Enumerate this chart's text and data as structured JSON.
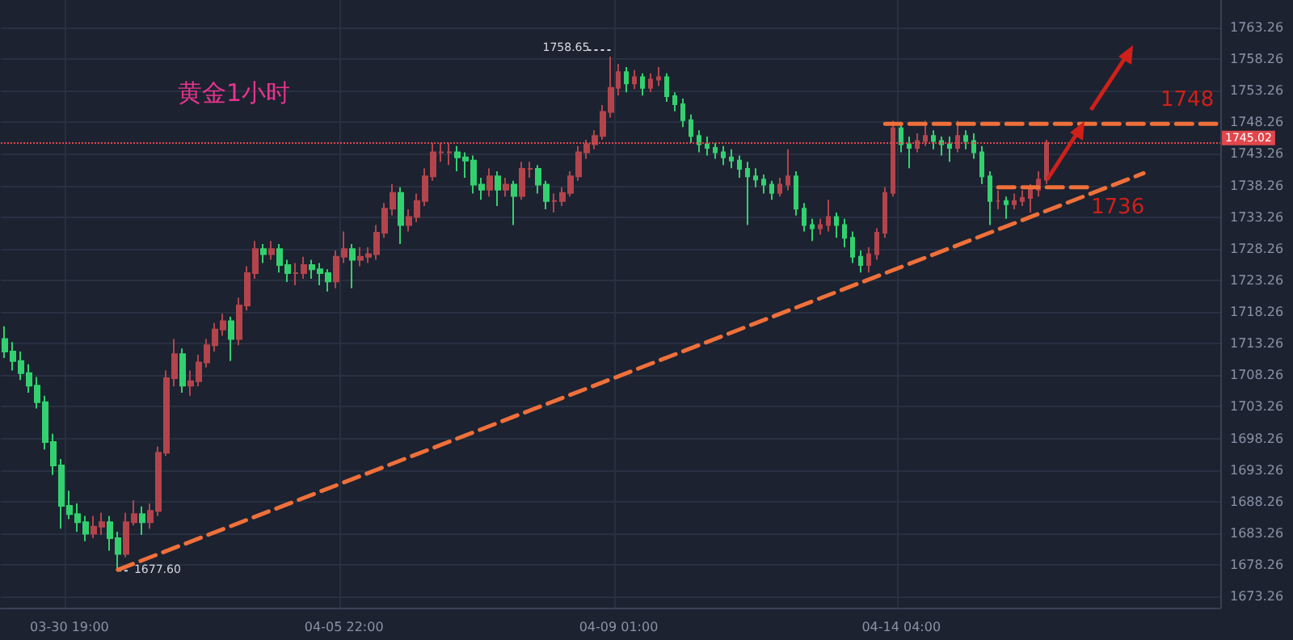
{
  "chart_data": {
    "type": "candlestick",
    "annotations": [
      "黄金1小时",
      "1758.65",
      "1677.60",
      {
        "text": "1748",
        "y": 1748
      },
      "1736"
    ],
    "categories": [
      null,
      null,
      null,
      null,
      null,
      null,
      null,
      null,
      "03-30 19:00",
      null,
      null,
      null,
      null,
      null,
      null,
      null,
      null,
      null,
      null,
      null,
      null,
      null,
      null,
      null,
      null,
      null,
      null,
      null,
      null,
      null,
      null,
      null,
      null,
      null,
      null,
      null,
      null,
      null,
      null,
      null,
      null,
      null,
      "04-05 22:00",
      null,
      null,
      null,
      null,
      null,
      null,
      null,
      null,
      null,
      null,
      null,
      null,
      null,
      null,
      null,
      null,
      null,
      null,
      null,
      null,
      null,
      null,
      null,
      null,
      null,
      null,
      null,
      null,
      null,
      null,
      null,
      null,
      null,
      "04-09 01:00",
      null,
      null,
      null,
      null,
      null,
      null,
      null,
      null,
      null,
      null,
      null,
      null,
      null,
      null,
      null,
      null,
      null,
      null,
      null,
      null,
      null,
      null,
      null,
      null,
      null,
      null,
      null,
      null,
      null,
      null,
      null,
      null,
      null,
      null,
      "04-14 04:00",
      null,
      null,
      null,
      null,
      null,
      null,
      null,
      null,
      null,
      null,
      null,
      null,
      null,
      null,
      null,
      null,
      null,
      null,
      null,
      null,
      null,
      null,
      null,
      null,
      null,
      null,
      null,
      null,
      null,
      null,
      null,
      null,
      null,
      null,
      null,
      null,
      null,
      null,
      null
    ],
    "ohlc": [
      [
        1714,
        1716,
        1711,
        1712
      ],
      [
        1712,
        1713.5,
        1709,
        1710.5
      ],
      [
        1710.5,
        1712,
        1707.5,
        1708.6
      ],
      [
        1708.6,
        1710,
        1705.5,
        1706.6
      ],
      [
        1706.6,
        1708,
        1703,
        1704
      ],
      [
        1704,
        1705,
        1696.5,
        1697.7
      ],
      [
        1697.7,
        1699,
        1692.5,
        1694
      ],
      [
        1694,
        1695,
        1684,
        1687.6
      ],
      [
        1687.6,
        1690,
        1685.5,
        1686.3
      ],
      [
        1686.3,
        1688,
        1683.5,
        1685
      ],
      [
        1685,
        1686,
        1682,
        1683.2
      ],
      [
        1683.2,
        1686,
        1682.5,
        1684.3
      ],
      [
        1684.3,
        1686.5,
        1683,
        1685
      ],
      [
        1685,
        1686,
        1680.5,
        1682.5
      ],
      [
        1682.5,
        1683.5,
        1677.6,
        1680
      ],
      [
        1680,
        1686.5,
        1679.5,
        1685
      ],
      [
        1685,
        1688.5,
        1684.5,
        1686.3
      ],
      [
        1686.3,
        1687.5,
        1683,
        1685
      ],
      [
        1685,
        1688,
        1684,
        1686.8
      ],
      [
        1686.8,
        1697,
        1686,
        1696
      ],
      [
        1696,
        1709,
        1695.5,
        1707.8
      ],
      [
        1707.8,
        1714,
        1706.5,
        1711.6
      ],
      [
        1711.6,
        1712.5,
        1705.5,
        1706.6
      ],
      [
        1706.6,
        1709,
        1705,
        1707.3
      ],
      [
        1707.3,
        1711.5,
        1706.5,
        1710.3
      ],
      [
        1710.3,
        1714,
        1709.5,
        1713
      ],
      [
        1713,
        1716.5,
        1712,
        1715.5
      ],
      [
        1715.5,
        1718,
        1714.5,
        1716.8
      ],
      [
        1716.8,
        1717.5,
        1710.5,
        1714
      ],
      [
        1714,
        1720.5,
        1713,
        1719.3
      ],
      [
        1719.3,
        1725.5,
        1718.5,
        1724.4
      ],
      [
        1724.4,
        1729.5,
        1723.5,
        1728.2
      ],
      [
        1728.2,
        1729,
        1726,
        1727.4
      ],
      [
        1727.4,
        1729.5,
        1726.5,
        1728.2
      ],
      [
        1728.2,
        1729,
        1724.5,
        1725.7
      ],
      [
        1725.7,
        1726.5,
        1723,
        1724.4
      ],
      [
        1724.4,
        1726,
        1722.5,
        1724.4
      ],
      [
        1724.4,
        1727,
        1723.5,
        1725.7
      ],
      [
        1725.7,
        1726.5,
        1723.5,
        1725
      ],
      [
        1725,
        1726,
        1722.5,
        1724.4
      ],
      [
        1724.4,
        1725,
        1721.5,
        1723.1
      ],
      [
        1723.1,
        1728,
        1722,
        1727
      ],
      [
        1727,
        1731,
        1726,
        1728.2
      ],
      [
        1728.2,
        1729,
        1722,
        1726.5
      ],
      [
        1726.5,
        1728.5,
        1725.5,
        1727
      ],
      [
        1727,
        1728.5,
        1726,
        1727.4
      ],
      [
        1727.4,
        1732,
        1726.5,
        1730.8
      ],
      [
        1730.8,
        1735.5,
        1730,
        1734.6
      ],
      [
        1734.6,
        1738.5,
        1733.5,
        1737.1
      ],
      [
        1737.1,
        1738,
        1729,
        1732
      ],
      [
        1732,
        1734.5,
        1731,
        1733.3
      ],
      [
        1733.3,
        1737,
        1732.5,
        1735.8
      ],
      [
        1735.8,
        1741,
        1735,
        1739.7
      ],
      [
        1739.7,
        1745,
        1739,
        1743.5
      ],
      [
        1743.5,
        1745,
        1742,
        1743.5
      ],
      [
        1743.5,
        1745,
        1741.5,
        1743.5
      ],
      [
        1743.5,
        1744.5,
        1740.5,
        1742.7
      ],
      [
        1742.7,
        1743.5,
        1739.5,
        1742.2
      ],
      [
        1742.2,
        1743,
        1737,
        1738.4
      ],
      [
        1738.4,
        1739.5,
        1736,
        1737.6
      ],
      [
        1737.6,
        1741,
        1736.5,
        1739.7
      ],
      [
        1739.7,
        1740.5,
        1735,
        1737.6
      ],
      [
        1737.6,
        1739.5,
        1736.5,
        1738.4
      ],
      [
        1738.4,
        1739,
        1732,
        1736.6
      ],
      [
        1736.6,
        1742,
        1736,
        1740.9
      ],
      [
        1740.9,
        1742,
        1739.5,
        1740.9
      ],
      [
        1740.9,
        1741.5,
        1737,
        1738.4
      ],
      [
        1738.4,
        1739,
        1734.5,
        1735.8
      ],
      [
        1735.8,
        1737,
        1734,
        1735.8
      ],
      [
        1735.8,
        1738,
        1735,
        1737.1
      ],
      [
        1737.1,
        1740.5,
        1736.5,
        1739.7
      ],
      [
        1739.7,
        1744.5,
        1739,
        1743.5
      ],
      [
        1743.5,
        1745.5,
        1742.5,
        1744.8
      ],
      [
        1744.8,
        1747,
        1744,
        1746.1
      ],
      [
        1746.1,
        1751,
        1745.5,
        1749.9
      ],
      [
        1749.9,
        1758.65,
        1749,
        1753.7
      ],
      [
        1753.7,
        1757.5,
        1752.5,
        1756.2
      ],
      [
        1756.2,
        1757,
        1753,
        1754.4
      ],
      [
        1754.4,
        1756.5,
        1753.5,
        1755.4
      ],
      [
        1755.4,
        1756,
        1752.5,
        1753.7
      ],
      [
        1753.7,
        1756,
        1753,
        1755
      ],
      [
        1755,
        1757,
        1754,
        1755.4
      ],
      [
        1755.4,
        1756,
        1751.5,
        1752.4
      ],
      [
        1752.4,
        1753,
        1750,
        1751.1
      ],
      [
        1751.1,
        1752,
        1747.5,
        1748.6
      ],
      [
        1748.6,
        1749.5,
        1745,
        1746.1
      ],
      [
        1746.1,
        1747,
        1743.5,
        1744.8
      ],
      [
        1744.8,
        1746,
        1743,
        1744.2
      ],
      [
        1744.2,
        1745,
        1742.5,
        1743.5
      ],
      [
        1743.5,
        1744.5,
        1741.5,
        1742.7
      ],
      [
        1742.7,
        1744,
        1741,
        1742.2
      ],
      [
        1742.2,
        1743,
        1739.5,
        1740.9
      ],
      [
        1740.9,
        1742,
        1732,
        1739.7
      ],
      [
        1739.7,
        1741,
        1738,
        1739.2
      ],
      [
        1739.2,
        1740,
        1737,
        1738.4
      ],
      [
        1738.4,
        1739,
        1736,
        1737.1
      ],
      [
        1737.1,
        1739.5,
        1736.5,
        1738.4
      ],
      [
        1738.4,
        1744,
        1737.5,
        1739.7
      ],
      [
        1739.7,
        1740.5,
        1733.5,
        1734.6
      ],
      [
        1734.6,
        1735.5,
        1731,
        1732
      ],
      [
        1732,
        1733,
        1729.5,
        1731.5
      ],
      [
        1731.5,
        1733,
        1730.5,
        1732
      ],
      [
        1732,
        1736,
        1731,
        1733.3
      ],
      [
        1733.3,
        1734,
        1730,
        1732
      ],
      [
        1732,
        1733,
        1728.5,
        1730
      ],
      [
        1730,
        1731,
        1726,
        1727
      ],
      [
        1727,
        1728,
        1724.5,
        1725.7
      ],
      [
        1725.7,
        1728.5,
        1724.5,
        1727.4
      ],
      [
        1727.4,
        1731.5,
        1726.5,
        1730.8
      ],
      [
        1730.8,
        1738,
        1730,
        1737.1
      ],
      [
        1737.1,
        1748.5,
        1736.5,
        1747.3
      ],
      [
        1747.3,
        1748,
        1743.5,
        1744.8
      ],
      [
        1744.8,
        1746,
        1741,
        1744.2
      ],
      [
        1744.2,
        1746.5,
        1743.5,
        1745.3
      ],
      [
        1745.3,
        1748.5,
        1744.5,
        1746.1
      ],
      [
        1746.1,
        1747,
        1744,
        1745.3
      ],
      [
        1745.3,
        1746,
        1743,
        1744.8
      ],
      [
        1744.8,
        1746,
        1742,
        1744.2
      ],
      [
        1744.2,
        1748.5,
        1743.5,
        1746.1
      ],
      [
        1746.1,
        1747,
        1744,
        1745.3
      ],
      [
        1745.3,
        1746.5,
        1742.5,
        1743.5
      ],
      [
        1743.5,
        1744.5,
        1738.5,
        1739.7
      ],
      [
        1739.7,
        1740.5,
        1732,
        1735.8
      ],
      [
        1735.8,
        1737.5,
        1734.5,
        1735.8
      ],
      [
        1735.8,
        1736.5,
        1733,
        1735.3
      ],
      [
        1735.3,
        1737,
        1734.5,
        1735.8
      ],
      [
        1735.8,
        1737.5,
        1735,
        1736.3
      ],
      [
        1736.3,
        1738.5,
        1734,
        1737.6
      ],
      [
        1737.6,
        1740.5,
        1736.5,
        1739.2
      ],
      [
        1739.2,
        1745.5,
        1738.5,
        1745.02
      ],
      null,
      null,
      null,
      null,
      null,
      null,
      null,
      null,
      null,
      null,
      null,
      null,
      null,
      null,
      null,
      null,
      null,
      null,
      null,
      null,
      null
    ],
    "series": [
      {
        "type": "line",
        "color": "#f0703a",
        "line_style": "dashed",
        "values": [
          null,
          null,
          null,
          null,
          null,
          null,
          null,
          null,
          null,
          null,
          null,
          null,
          null,
          null,
          1677.5,
          null,
          null,
          null,
          null,
          null,
          null,
          null,
          null,
          null,
          null,
          null,
          null,
          null,
          null,
          null,
          null,
          null,
          null,
          null,
          null,
          null,
          null,
          null,
          null,
          null,
          null,
          null,
          null,
          null,
          null,
          null,
          null,
          null,
          null,
          null,
          null,
          null,
          null,
          null,
          null,
          null,
          null,
          null,
          null,
          null,
          null,
          null,
          null,
          null,
          null,
          null,
          null,
          null,
          null,
          null,
          null,
          null,
          null,
          null,
          null,
          null,
          null,
          null,
          null,
          null,
          null,
          null,
          null,
          null,
          null,
          null,
          null,
          null,
          null,
          null,
          null,
          null,
          null,
          null,
          null,
          null,
          null,
          null,
          null,
          null,
          null,
          null,
          null,
          null,
          null,
          null,
          null,
          null,
          null,
          null,
          null,
          null,
          null,
          null,
          null,
          null,
          null,
          null,
          null,
          null,
          null,
          null,
          null,
          null,
          null,
          null,
          null,
          null,
          null,
          null,
          null,
          null,
          null,
          null,
          null,
          null,
          null,
          null,
          null,
          null,
          null,
          1740.2,
          null,
          null,
          null,
          null,
          null,
          null,
          null,
          null,
          null
        ]
      },
      {
        "type": "line",
        "color": "#f0703a",
        "line_style": "dashed",
        "values": [
          null,
          null,
          null,
          null,
          null,
          null,
          null,
          null,
          null,
          null,
          null,
          null,
          null,
          null,
          null,
          null,
          null,
          null,
          null,
          null,
          null,
          null,
          null,
          null,
          null,
          null,
          null,
          null,
          null,
          null,
          null,
          null,
          null,
          null,
          null,
          null,
          null,
          null,
          null,
          null,
          null,
          null,
          null,
          null,
          null,
          null,
          null,
          null,
          null,
          null,
          null,
          null,
          null,
          null,
          null,
          null,
          null,
          null,
          null,
          null,
          null,
          null,
          null,
          null,
          null,
          null,
          null,
          null,
          null,
          null,
          null,
          null,
          null,
          null,
          null,
          null,
          null,
          null,
          null,
          null,
          null,
          null,
          null,
          null,
          null,
          null,
          null,
          null,
          null,
          null,
          null,
          null,
          null,
          null,
          null,
          null,
          null,
          null,
          null,
          null,
          null,
          null,
          null,
          null,
          null,
          null,
          null,
          null,
          null,
          1748,
          null,
          null,
          null,
          null,
          null,
          null,
          null,
          null,
          null,
          null,
          null,
          null,
          null,
          null,
          null,
          null,
          null,
          null,
          null,
          null,
          null,
          null,
          null,
          null,
          null,
          null,
          null,
          null,
          null,
          null,
          null,
          null,
          null,
          null,
          null,
          null,
          null,
          null,
          null,
          null,
          1748
        ]
      },
      {
        "type": "line",
        "color": "#f0703a",
        "line_style": "dashed",
        "values": [
          null,
          null,
          null,
          null,
          null,
          null,
          null,
          null,
          null,
          null,
          null,
          null,
          null,
          null,
          null,
          null,
          null,
          null,
          null,
          null,
          null,
          null,
          null,
          null,
          null,
          null,
          null,
          null,
          null,
          null,
          null,
          null,
          null,
          null,
          null,
          null,
          null,
          null,
          null,
          null,
          null,
          null,
          null,
          null,
          null,
          null,
          null,
          null,
          null,
          null,
          null,
          null,
          null,
          null,
          null,
          null,
          null,
          null,
          null,
          null,
          null,
          null,
          null,
          null,
          null,
          null,
          null,
          null,
          null,
          null,
          null,
          null,
          null,
          null,
          null,
          null,
          null,
          null,
          null,
          null,
          null,
          null,
          null,
          null,
          null,
          null,
          null,
          null,
          null,
          null,
          null,
          null,
          null,
          null,
          null,
          null,
          null,
          null,
          null,
          null,
          null,
          null,
          null,
          null,
          null,
          null,
          null,
          null,
          null,
          null,
          null,
          null,
          null,
          null,
          null,
          null,
          null,
          null,
          null,
          null,
          null,
          null,
          null,
          1738,
          null,
          null,
          null,
          null,
          null,
          null,
          null,
          null,
          null,
          null,
          null,
          1738,
          null,
          null,
          null,
          null,
          null,
          null,
          null,
          null,
          null,
          null,
          null,
          null,
          null,
          null,
          null
        ]
      }
    ],
    "ref_lines": [
      {
        "axis": "y",
        "value": 1745.02,
        "label": "1745.02",
        "color": "#e0474c",
        "line_style": "dotted"
      }
    ],
    "ylim": [
      1671.5,
      1767.6
    ],
    "yticks": [
      1673.26,
      1678.26,
      1683.26,
      1688.26,
      1693.26,
      1698.26,
      1703.26,
      1708.26,
      1713.26,
      1718.26,
      1723.26,
      1728.26,
      1733.26,
      1738.26,
      1743.26,
      1748.26,
      1753.26,
      1758.26,
      1763.26
    ],
    "grid": true,
    "marker": "none"
  }
}
